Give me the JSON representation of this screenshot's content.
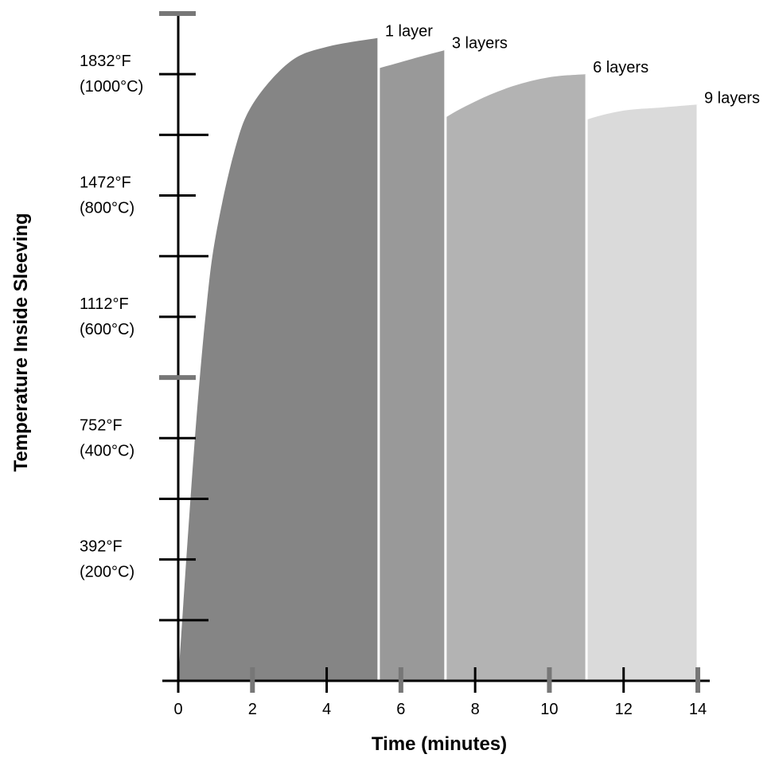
{
  "chart_data": {
    "type": "area",
    "title": "",
    "xlabel": "Time (minutes)",
    "ylabel": "Temperature Inside Sleeving",
    "xlim": [
      0,
      14
    ],
    "ylim": [
      0,
      1100
    ],
    "x_ticks": [
      0,
      2,
      4,
      6,
      8,
      10,
      12,
      14
    ],
    "x_tick_labels": [
      "0",
      "2",
      "4",
      "6",
      "8",
      "10",
      "12",
      "14"
    ],
    "y_ticks": [
      200,
      400,
      600,
      800,
      1000
    ],
    "y_tick_labels": [
      {
        "fahrenheit": "392°F",
        "celsius": "(200°C)"
      },
      {
        "fahrenheit": "752°F",
        "celsius": "(400°C)"
      },
      {
        "fahrenheit": "1112°F",
        "celsius": "(600°C)"
      },
      {
        "fahrenheit": "1472°F",
        "celsius": "(800°C)"
      },
      {
        "fahrenheit": "1832°F",
        "celsius": "(1000°C)"
      }
    ],
    "y_minor_ticks": [
      100,
      300,
      500,
      700,
      900,
      1100
    ],
    "grid": false,
    "series": [
      {
        "name": "9 layers",
        "color": "#dadada",
        "x": [
          0,
          1,
          2,
          3,
          4,
          5,
          6,
          7,
          8,
          9,
          10,
          11,
          12,
          13,
          14
        ],
        "values": [
          0,
          135,
          265,
          385,
          495,
          595,
          680,
          750,
          810,
          860,
          900,
          925,
          940,
          945,
          950
        ]
      },
      {
        "name": "6 layers",
        "color": "#b3b3b3",
        "x": [
          0,
          1,
          2,
          3,
          4,
          5,
          6,
          7,
          8,
          9,
          10,
          11
        ],
        "values": [
          0,
          205,
          405,
          565,
          690,
          790,
          865,
          920,
          955,
          980,
          995,
          1000
        ]
      },
      {
        "name": "3 layers",
        "color": "#999999",
        "x": [
          0,
          0.5,
          1,
          1.5,
          2,
          3,
          4,
          5,
          6,
          7.2
        ],
        "values": [
          0,
          230,
          440,
          610,
          740,
          890,
          960,
          1000,
          1020,
          1040
        ]
      },
      {
        "name": "1 layer",
        "color": "#858585",
        "x": [
          0,
          0.25,
          0.5,
          0.75,
          1,
          1.5,
          2,
          3,
          4,
          5.4
        ],
        "values": [
          0,
          230,
          440,
          610,
          730,
          870,
          950,
          1020,
          1045,
          1060
        ]
      }
    ]
  }
}
